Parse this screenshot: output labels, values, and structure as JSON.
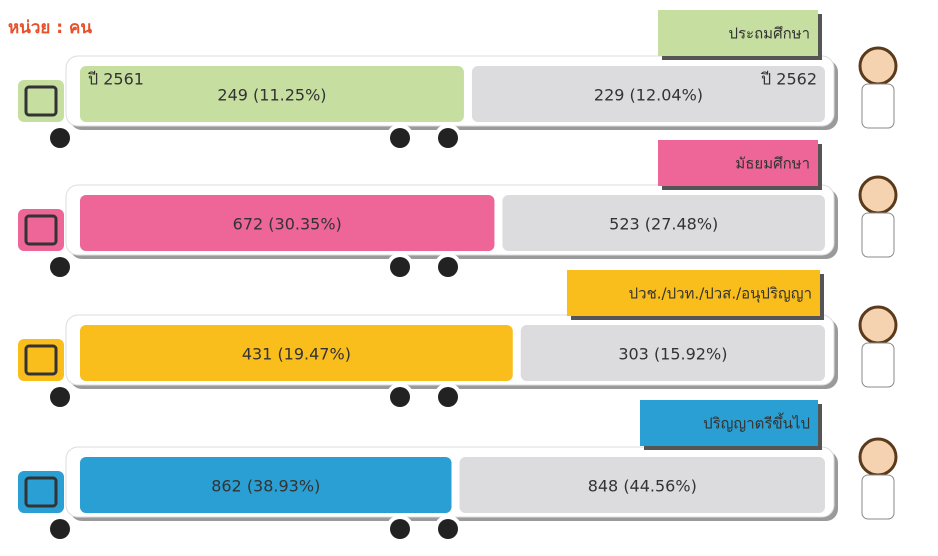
{
  "chart_data": {
    "type": "split-bar",
    "subtitle": "หน่วย : คน",
    "categories": [
      "ประถมศึกษา",
      "มัธยมศึกษา",
      "ปวช./ปวท./ปวส./อนุปริญญา",
      "ปริญญาตรีขึ้นไป"
    ],
    "category_colors": [
      "#c6dea0",
      "#ee6597",
      "#f9bd1c",
      "#2a9fd3"
    ],
    "series": [
      {
        "name": "ปี 2561",
        "colors": [
          "#c6dea0",
          "#ee6597",
          "#f9bd1c",
          "#2a9fd3"
        ],
        "values": [
          249,
          672,
          431,
          862
        ],
        "value_labels": [
          "249 (11.25%)",
          "672 (30.35%)",
          "431 (19.47%)",
          "862 (38.93%)"
        ]
      },
      {
        "name": "ปี 2562",
        "color": "#dcdcdf",
        "values": [
          229,
          523,
          303,
          848
        ],
        "value_labels": [
          "229 (12.04%)",
          "523 (27.48%)",
          "303 (15.92%)",
          "848 (44.56%)"
        ]
      }
    ]
  }
}
